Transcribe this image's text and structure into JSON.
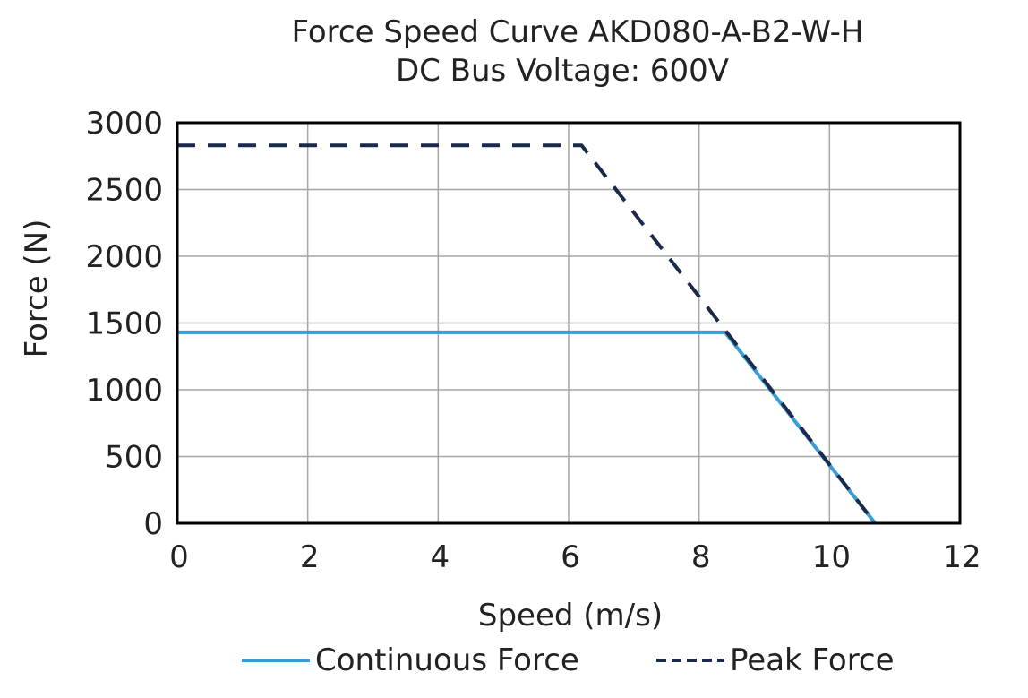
{
  "chart_data": {
    "type": "line",
    "title": "Force Speed Curve AKD080-A-B2-W-H",
    "subtitle": "DC Bus Voltage: 600V",
    "xlabel": "Speed (m/s)",
    "ylabel": "Force (N)",
    "xlim": [
      0,
      12
    ],
    "ylim": [
      0,
      3000
    ],
    "xticks": [
      "0",
      "2",
      "4",
      "6",
      "8",
      "10",
      "12"
    ],
    "yticks": [
      "0",
      "500",
      "1000",
      "1500",
      "2000",
      "2500",
      "3000"
    ],
    "grid": true,
    "legend_position": "bottom",
    "series": [
      {
        "name": "Continuous Force",
        "color": "#3b9bd6",
        "style": "solid",
        "x": [
          0,
          8.4,
          10.7
        ],
        "y": [
          1430,
          1430,
          0
        ]
      },
      {
        "name": "Peak Force",
        "color": "#1b2a4a",
        "style": "dashed",
        "x": [
          0,
          6.2,
          10.7
        ],
        "y": [
          2830,
          2830,
          0
        ]
      }
    ]
  }
}
